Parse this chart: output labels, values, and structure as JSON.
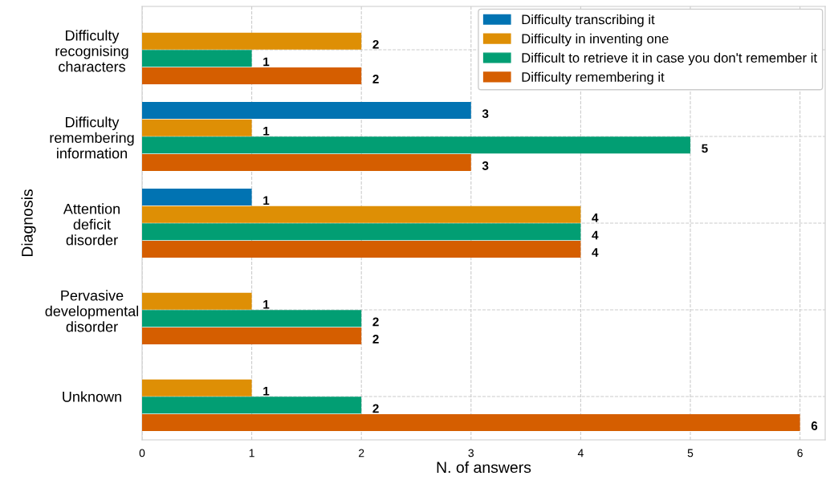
{
  "chart_data": {
    "type": "bar",
    "orientation": "horizontal",
    "xlabel": "N. of answers",
    "ylabel": "Diagnosis",
    "categories": [
      "Difficulty\nrecognising\ncharacters",
      "Difficulty\nremembering\ninformation",
      "Attention\ndeficit\ndisorder",
      "Pervasive\ndevelopmental\ndisorder",
      "Unknown"
    ],
    "series": [
      {
        "name": "Difficulty transcribing it",
        "color": "#0173b2",
        "values": [
          null,
          3,
          1,
          null,
          null
        ]
      },
      {
        "name": "Difficulty in inventing one",
        "color": "#de8f05",
        "values": [
          2,
          1,
          4,
          1,
          1
        ]
      },
      {
        "name": "Difficult to retrieve it in case you don't remember it",
        "color": "#029e73",
        "values": [
          1,
          5,
          4,
          2,
          2
        ]
      },
      {
        "name": "Difficulty remembering it",
        "color": "#d55e00",
        "values": [
          2,
          3,
          4,
          2,
          6
        ]
      }
    ],
    "xlim": [
      0,
      6.23
    ],
    "xticks": [
      0,
      1,
      2,
      3,
      4,
      5,
      6
    ],
    "grid": true,
    "legend": "top right",
    "data_labels": true
  }
}
